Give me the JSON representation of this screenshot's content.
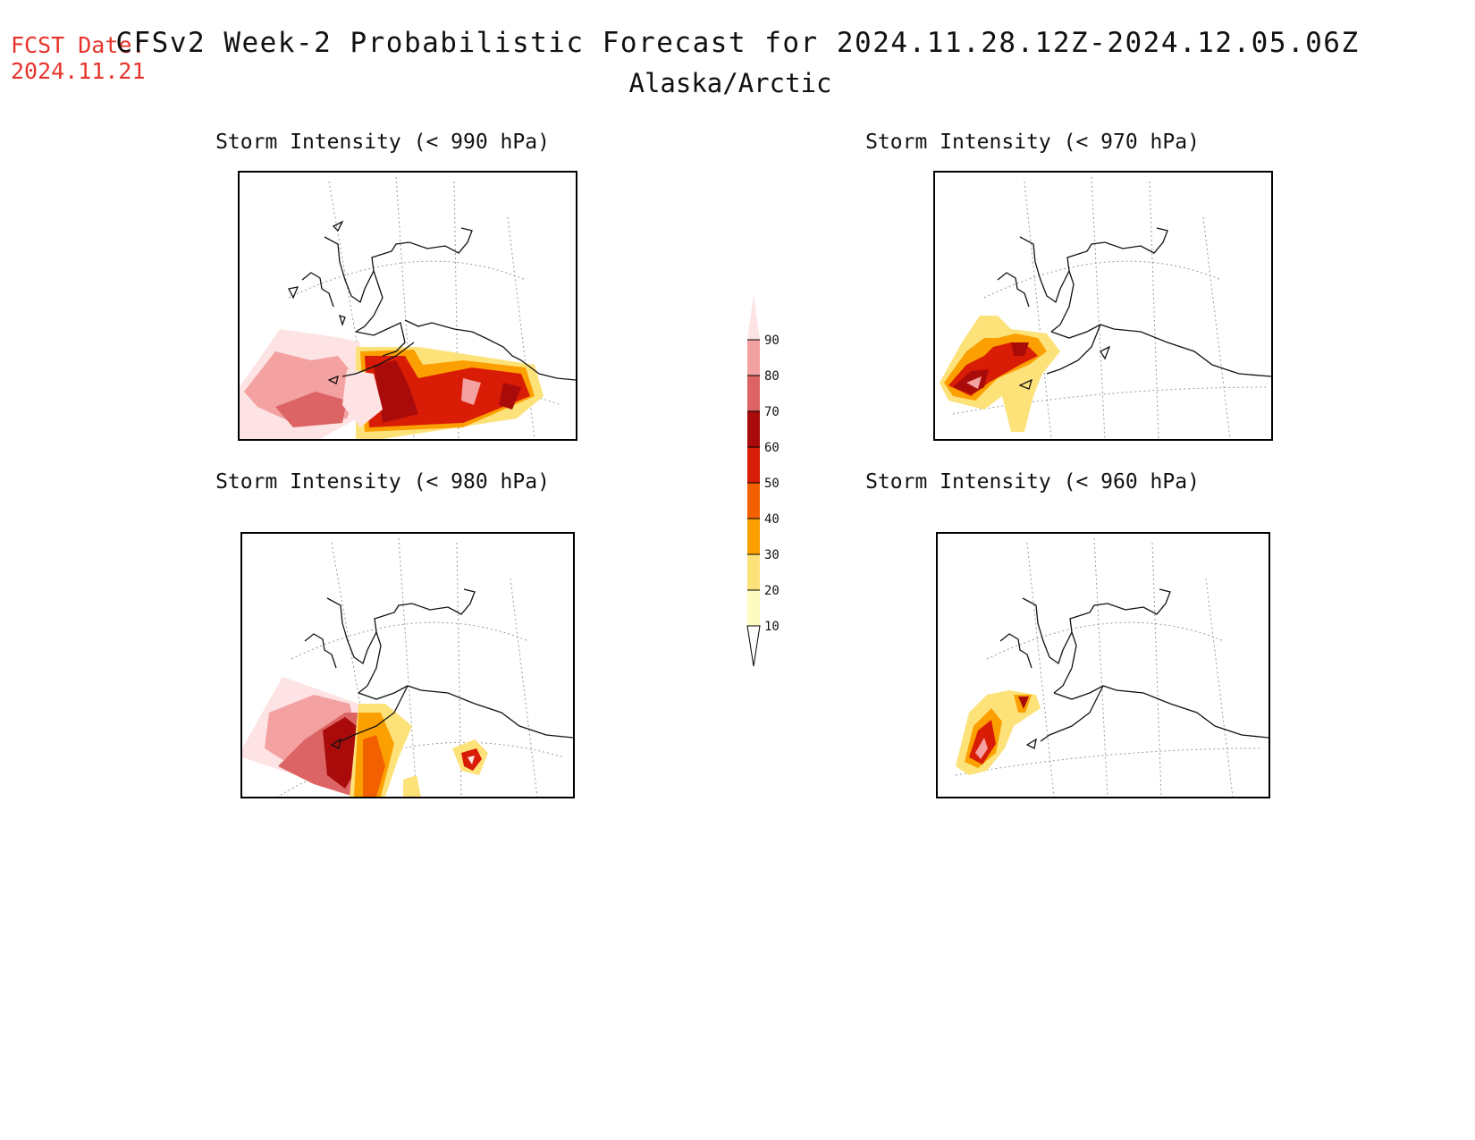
{
  "header": {
    "fcst_label": "FCST Date:",
    "fcst_date": "2024.11.21",
    "title": "CFSv2 Week-2 Probabilistic Forecast for 2024.11.28.12Z-2024.12.05.06Z",
    "region": "Alaska/Arctic"
  },
  "panels": [
    {
      "title": "Storm Intensity (< 990 hPa)"
    },
    {
      "title": "Storm Intensity (< 970 hPa)"
    },
    {
      "title": "Storm Intensity (< 980 hPa)"
    },
    {
      "title": "Storm Intensity (< 960 hPa)"
    }
  ],
  "legend": {
    "levels": [
      "90",
      "80",
      "70",
      "60",
      "50",
      "40",
      "30",
      "20",
      "10"
    ],
    "colors": {
      "above_90": "#fde3e3",
      "80_90": "#f3a1a1",
      "70_80": "#dc6464",
      "60_70": "#a90b0b",
      "50_60": "#d91c05",
      "40_50": "#f36000",
      "30_40": "#fba000",
      "20_30": "#fde27a",
      "10_20": "#fffac0"
    }
  }
}
